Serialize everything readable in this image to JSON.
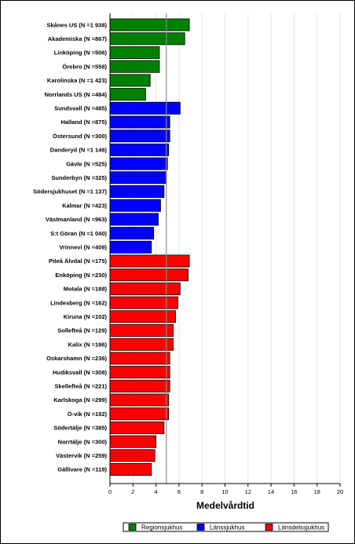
{
  "chart_data": {
    "type": "bar",
    "orientation": "horizontal",
    "title": "",
    "xlabel": "Medelvårdtid",
    "ylabel": "",
    "xlim": [
      0,
      20
    ],
    "xticks": [
      0,
      2,
      4,
      6,
      8,
      10,
      12,
      14,
      16,
      18,
      20
    ],
    "reference_line": 4.9,
    "grid": "vertical",
    "legend_position": "bottom",
    "colors": {
      "Regionsjukhus": "#008000",
      "Länssjukhus": "#0000ff",
      "Länsdelssjukhus": "#ff0000"
    },
    "series": [
      {
        "name": "Regionsjukhus",
        "color": "#008000"
      },
      {
        "name": "Länssjukhus",
        "color": "#0000ff"
      },
      {
        "name": "Länsdelssjukhus",
        "color": "#ff0000"
      }
    ],
    "bars": [
      {
        "label": "Skånes US (N =1 938)",
        "value": 6.9,
        "group": "Regionsjukhus"
      },
      {
        "label": "Akademiska (N =867)",
        "value": 6.5,
        "group": "Regionsjukhus"
      },
      {
        "label": "Linköping (N =506)",
        "value": 4.3,
        "group": "Regionsjukhus"
      },
      {
        "label": "Örebro (N =558)",
        "value": 4.3,
        "group": "Regionsjukhus"
      },
      {
        "label": "Karolinska (N =1 423)",
        "value": 3.5,
        "group": "Regionsjukhus"
      },
      {
        "label": "Norrlands US (N =484)",
        "value": 3.1,
        "group": "Regionsjukhus"
      },
      {
        "label": "Sundsvall (N =485)",
        "value": 6.1,
        "group": "Länssjukhus"
      },
      {
        "label": "Halland (N =875)",
        "value": 5.2,
        "group": "Länssjukhus"
      },
      {
        "label": "Östersund (N =300)",
        "value": 5.2,
        "group": "Länssjukhus"
      },
      {
        "label": "Danderyd (N =1 146)",
        "value": 5.1,
        "group": "Länssjukhus"
      },
      {
        "label": "Gävle (N =525)",
        "value": 5.0,
        "group": "Länssjukhus"
      },
      {
        "label": "Sunderbyn (N =325)",
        "value": 4.9,
        "group": "Länssjukhus"
      },
      {
        "label": "Södersjukhuset (N =1 137)",
        "value": 4.7,
        "group": "Länssjukhus"
      },
      {
        "label": "Kalmar (N =423)",
        "value": 4.4,
        "group": "Länssjukhus"
      },
      {
        "label": "Västmanland (N =963)",
        "value": 4.2,
        "group": "Länssjukhus"
      },
      {
        "label": "S:t Göran (N =1 040)",
        "value": 3.8,
        "group": "Länssjukhus"
      },
      {
        "label": "Vrinnevi (N =409)",
        "value": 3.6,
        "group": "Länssjukhus"
      },
      {
        "label": "Piteå Älvdal (N =175)",
        "value": 6.9,
        "group": "Länsdelssjukhus"
      },
      {
        "label": "Enköping (N =230)",
        "value": 6.8,
        "group": "Länsdelssjukhus"
      },
      {
        "label": "Motala (N =188)",
        "value": 6.1,
        "group": "Länsdelssjukhus"
      },
      {
        "label": "Lindesberg (N =162)",
        "value": 5.9,
        "group": "Länsdelssjukhus"
      },
      {
        "label": "Kiruna (N =102)",
        "value": 5.7,
        "group": "Länsdelssjukhus"
      },
      {
        "label": "Sollefteå (N =129)",
        "value": 5.5,
        "group": "Länsdelssjukhus"
      },
      {
        "label": "Kalix (N =186)",
        "value": 5.5,
        "group": "Länsdelssjukhus"
      },
      {
        "label": "Oskarshamn (N =236)",
        "value": 5.2,
        "group": "Länsdelssjukhus"
      },
      {
        "label": "Hudiksvall (N =308)",
        "value": 5.2,
        "group": "Länsdelssjukhus"
      },
      {
        "label": "Skellefteå (N =221)",
        "value": 5.2,
        "group": "Länsdelssjukhus"
      },
      {
        "label": "Karlskoga (N =299)",
        "value": 5.1,
        "group": "Länsdelssjukhus"
      },
      {
        "label": "Ö-vik (N =192)",
        "value": 5.1,
        "group": "Länsdelssjukhus"
      },
      {
        "label": "Södertälje (N =385)",
        "value": 4.7,
        "group": "Länsdelssjukhus"
      },
      {
        "label": "Norrtälje (N =300)",
        "value": 4.0,
        "group": "Länsdelssjukhus"
      },
      {
        "label": "Västervik (N =259)",
        "value": 3.9,
        "group": "Länsdelssjukhus"
      },
      {
        "label": "Gällivare (N =118)",
        "value": 3.6,
        "group": "Länsdelssjukhus"
      }
    ]
  }
}
